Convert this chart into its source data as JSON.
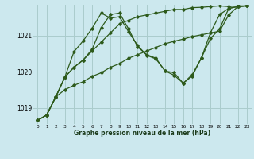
{
  "title": "Graphe pression niveau de la mer (hPa)",
  "background_color": "#cce8ee",
  "grid_color": "#aacccc",
  "line_color": "#2d5a1b",
  "xlim": [
    -0.5,
    23.5
  ],
  "ylim": [
    1018.55,
    1021.85
  ],
  "yticks": [
    1019,
    1020,
    1021
  ],
  "xticks": [
    0,
    1,
    2,
    3,
    4,
    5,
    6,
    7,
    8,
    9,
    10,
    11,
    12,
    13,
    14,
    15,
    16,
    17,
    18,
    19,
    20,
    21,
    22,
    23
  ],
  "line1_x": [
    0,
    1,
    2,
    3,
    4,
    5,
    6,
    7,
    8,
    9,
    10,
    11,
    12,
    13,
    14,
    15,
    16,
    17,
    18,
    19,
    20,
    21,
    22,
    23
  ],
  "line1_y": [
    1018.65,
    1018.8,
    1019.3,
    1019.85,
    1020.55,
    1020.85,
    1021.2,
    1021.62,
    1021.48,
    1021.52,
    1021.1,
    1020.72,
    1020.45,
    1020.35,
    1020.02,
    1019.9,
    1019.68,
    1019.88,
    1020.38,
    1021.08,
    1021.58,
    1021.75,
    1021.8,
    1021.82
  ],
  "line2_x": [
    0,
    1,
    2,
    3,
    4,
    5,
    6,
    7,
    8,
    9,
    10,
    11,
    12,
    13,
    14,
    15,
    16,
    17,
    18,
    19,
    20,
    21,
    22,
    23
  ],
  "line2_y": [
    1018.65,
    1018.8,
    1019.3,
    1019.5,
    1019.62,
    1019.72,
    1019.87,
    1019.97,
    1020.12,
    1020.22,
    1020.37,
    1020.47,
    1020.57,
    1020.67,
    1020.77,
    1020.84,
    1020.9,
    1020.97,
    1021.02,
    1021.07,
    1021.12,
    1021.57,
    1021.8,
    1021.82
  ],
  "line3_x": [
    0,
    1,
    2,
    3,
    4,
    5,
    6,
    7,
    8,
    9,
    10,
    11,
    12,
    13,
    14,
    15,
    16,
    17,
    18,
    19,
    20,
    21,
    22,
    23
  ],
  "line3_y": [
    1018.65,
    1018.8,
    1019.3,
    1019.85,
    1020.12,
    1020.32,
    1020.57,
    1020.82,
    1021.07,
    1021.32,
    1021.42,
    1021.52,
    1021.57,
    1021.62,
    1021.67,
    1021.72,
    1021.72,
    1021.77,
    1021.78,
    1021.8,
    1021.82,
    1021.8,
    1021.82,
    1021.82
  ],
  "line4_x": [
    1,
    2,
    3,
    4,
    5,
    6,
    7,
    8,
    9,
    10,
    11,
    12,
    13,
    14,
    15,
    16,
    17,
    18,
    19,
    20,
    21,
    22,
    23
  ],
  "line4_y": [
    1018.8,
    1019.3,
    1019.85,
    1020.12,
    1020.32,
    1020.62,
    1021.22,
    1021.58,
    1021.62,
    1021.18,
    1020.68,
    1020.47,
    1020.37,
    1020.02,
    1019.97,
    1019.68,
    1019.92,
    1020.38,
    1020.92,
    1021.18,
    1021.75,
    1021.8,
    1021.82
  ]
}
